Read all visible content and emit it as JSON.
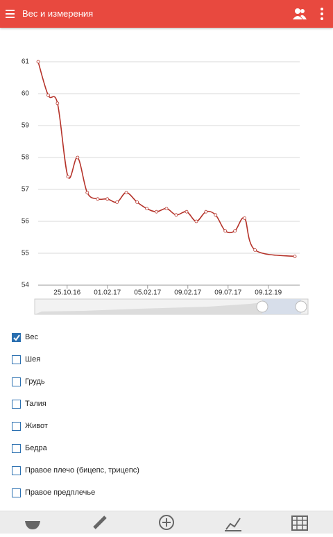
{
  "app_bar": {
    "title": "Вес и измерения"
  },
  "chart_data": {
    "type": "line",
    "x": [
      0.28,
      0.53,
      0.76,
      1.02,
      1.26,
      1.5,
      1.76,
      2.0,
      2.24,
      2.47,
      2.74,
      2.98,
      3.22,
      3.47,
      3.71,
      3.97,
      4.21,
      4.45,
      4.69,
      4.93,
      5.17,
      5.41,
      5.67,
      6.66
    ],
    "series": [
      {
        "color": "#b5332a",
        "values": [
          61,
          59.95,
          59.7,
          57.4,
          58,
          56.9,
          56.7,
          56.7,
          56.6,
          56.9,
          56.6,
          56.4,
          56.3,
          56.4,
          56.2,
          56.3,
          56.0,
          56.3,
          56.2,
          55.7,
          55.7,
          56.1,
          55.1,
          54.9
        ]
      }
    ],
    "xlim": [
      0.28,
      6.78
    ],
    "xticks": [
      {
        "value": 1,
        "label": "25.10.16"
      },
      {
        "value": 2,
        "label": "01.02.17"
      },
      {
        "value": 3,
        "label": "05.02.17"
      },
      {
        "value": 4,
        "label": "09.02.17"
      },
      {
        "value": 5,
        "label": "09.07.17"
      },
      {
        "value": 6,
        "label": "09.12.19"
      }
    ],
    "ylim": [
      54,
      61
    ],
    "yticks": [
      54,
      55,
      56,
      57,
      58,
      59,
      60,
      61
    ],
    "grid": true
  },
  "measurements": [
    {
      "label": "Вес",
      "checked": true
    },
    {
      "label": "Шея",
      "checked": false
    },
    {
      "label": "Грудь",
      "checked": false
    },
    {
      "label": "Талия",
      "checked": false
    },
    {
      "label": "Живот",
      "checked": false
    },
    {
      "label": "Бедра",
      "checked": false
    },
    {
      "label": "Правое плечо (бицепс, трицепс)",
      "checked": false
    },
    {
      "label": "Правое предплечье",
      "checked": false
    }
  ]
}
